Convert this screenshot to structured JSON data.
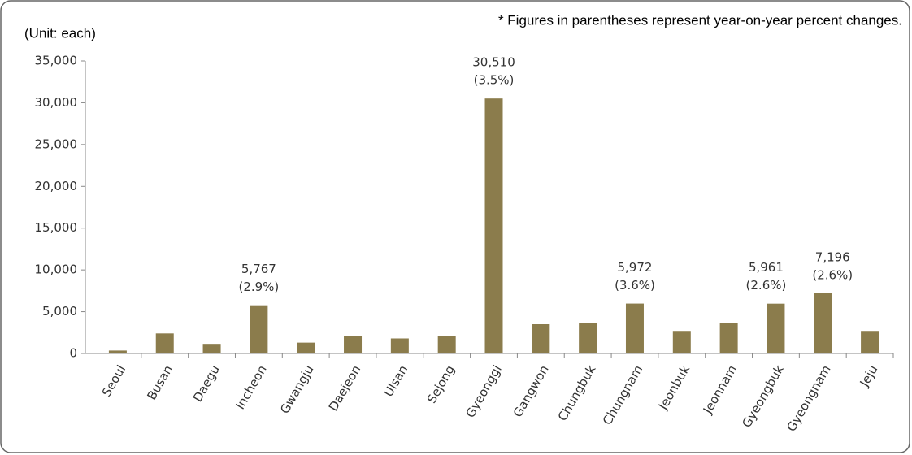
{
  "chart_data": {
    "type": "bar",
    "unit_label": "(Unit: each)",
    "note": "* Figures in parentheses represent year-on-year percent changes.",
    "categories": [
      "Seoul",
      "Busan",
      "Daegu",
      "Incheon",
      "Gwangju",
      "Daejeon",
      "Ulsan",
      "Sejong",
      "Gyeonggi",
      "Gangwon",
      "Chungbuk",
      "Chungnam",
      "Jeonbuk",
      "Jeonnam",
      "Gyeongbuk",
      "Gyeongnam",
      "Jeju"
    ],
    "values": [
      350,
      2400,
      1150,
      5767,
      1300,
      2100,
      1800,
      2100,
      30510,
      3500,
      3600,
      5972,
      2700,
      3600,
      5961,
      7196,
      2700
    ],
    "value_labels": [
      null,
      null,
      null,
      "5,767",
      null,
      null,
      null,
      null,
      "30,510",
      null,
      null,
      "5,972",
      null,
      null,
      "5,961",
      "7,196",
      null
    ],
    "changes": [
      null,
      null,
      null,
      "(2.9%)",
      null,
      null,
      null,
      null,
      "(3.5%)",
      null,
      null,
      "(3.6%)",
      null,
      null,
      "(2.6%)",
      "(2.6%)",
      null
    ],
    "color": "#8b7c4c",
    "ylim": [
      0,
      35000
    ],
    "yticks": [
      0,
      {
        "value": 5000,
        "label": "5,000"
      },
      {
        "value": 10000,
        "label": "10,000"
      },
      {
        "value": 15000,
        "label": "15,000"
      },
      {
        "value": 20000,
        "label": "20,000"
      },
      {
        "value": 25000,
        "label": "25,000"
      },
      {
        "value": 30000,
        "label": "30,000"
      },
      {
        "value": 35000,
        "label": "35,000"
      }
    ],
    "grid": false
  }
}
